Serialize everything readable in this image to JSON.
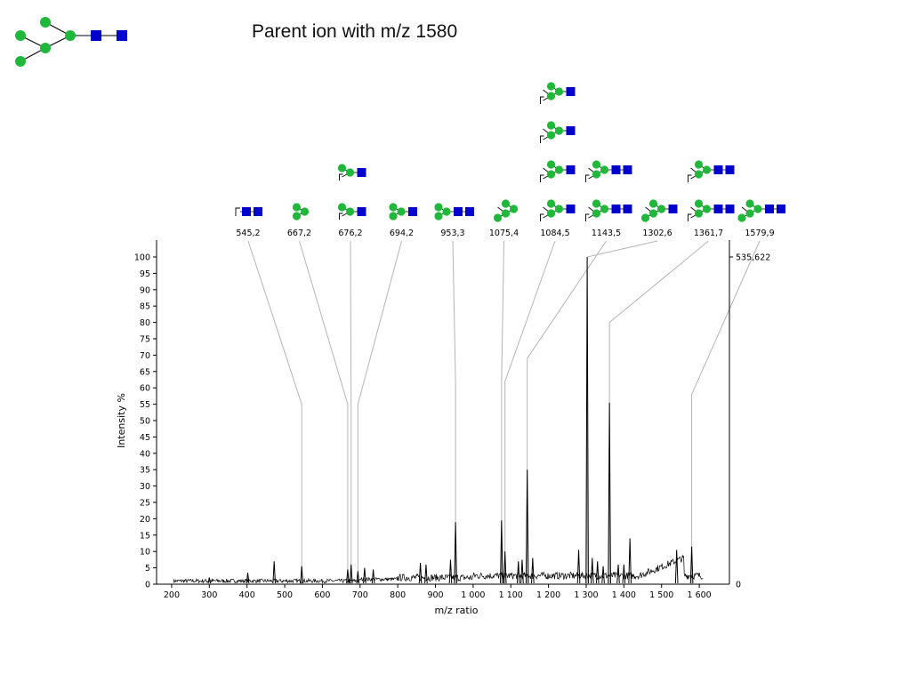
{
  "title": "Parent ion with m/z 1580",
  "colors": {
    "sugar": "#1fb83a",
    "core": "#0000cc",
    "peak": "#000000",
    "leader": "#b4b4b4"
  },
  "chart_data": {
    "type": "line",
    "title": "Parent ion with m/z 1580",
    "xlabel": "m/z ratio",
    "ylabel": "Intensity %",
    "xlim": [
      160,
      1680
    ],
    "ylim": [
      0,
      100
    ],
    "x_ticks": [
      200,
      300,
      400,
      500,
      600,
      700,
      800,
      900,
      1000,
      1100,
      1200,
      1300,
      1400,
      1500,
      1600
    ],
    "x_tick_labels": [
      "200",
      "300",
      "400",
      "500",
      "600",
      "700",
      "800",
      "900",
      "1 000",
      "1 100",
      "1 200",
      "1 300",
      "1 400",
      "1 500",
      "1 600"
    ],
    "y_ticks": [
      0,
      5,
      10,
      15,
      20,
      25,
      30,
      35,
      40,
      45,
      50,
      55,
      60,
      65,
      70,
      75,
      80,
      85,
      90,
      95,
      100
    ],
    "right_axis_labels": {
      "top": "535,622",
      "bottom": "0"
    },
    "grid": false,
    "peaks": [
      {
        "x": 300,
        "y": 2
      },
      {
        "x": 402,
        "y": 3.5
      },
      {
        "x": 472,
        "y": 7
      },
      {
        "x": 545.2,
        "y": 5.5
      },
      {
        "x": 667.2,
        "y": 4.5
      },
      {
        "x": 676.2,
        "y": 6
      },
      {
        "x": 694.2,
        "y": 4
      },
      {
        "x": 712,
        "y": 5
      },
      {
        "x": 735,
        "y": 4.5
      },
      {
        "x": 860,
        "y": 6.5
      },
      {
        "x": 875,
        "y": 6
      },
      {
        "x": 940,
        "y": 7.5
      },
      {
        "x": 953.3,
        "y": 19
      },
      {
        "x": 1075.4,
        "y": 19.5
      },
      {
        "x": 1084.5,
        "y": 10
      },
      {
        "x": 1120,
        "y": 7
      },
      {
        "x": 1130,
        "y": 7.5
      },
      {
        "x": 1143.5,
        "y": 35
      },
      {
        "x": 1158,
        "y": 8
      },
      {
        "x": 1280,
        "y": 10.5
      },
      {
        "x": 1302.6,
        "y": 100
      },
      {
        "x": 1316,
        "y": 8
      },
      {
        "x": 1330,
        "y": 7
      },
      {
        "x": 1345,
        "y": 5.5
      },
      {
        "x": 1361.7,
        "y": 55.5
      },
      {
        "x": 1385,
        "y": 6
      },
      {
        "x": 1400,
        "y": 6
      },
      {
        "x": 1416,
        "y": 14
      },
      {
        "x": 1540,
        "y": 10.5
      },
      {
        "x": 1579.9,
        "y": 11.5
      }
    ],
    "annotations": [
      {
        "label": "545,2",
        "x": 545.2,
        "y": 55,
        "structure": [
          [
            "f",
            "b",
            "b"
          ]
        ]
      },
      {
        "label": "667,2",
        "x": 667.2,
        "y": 55,
        "structure": [
          [
            "g2"
          ]
        ]
      },
      {
        "label": "676,2",
        "x": 676.2,
        "y": 55,
        "structure": [
          [
            "fg",
            "b"
          ],
          [
            "fg",
            "b"
          ]
        ]
      },
      {
        "label": "694,2",
        "x": 694.2,
        "y": 55,
        "structure": [
          [
            "g2",
            "b"
          ]
        ]
      },
      {
        "label": "953,3",
        "x": 953.3,
        "y": 62,
        "structure": [
          [
            "g2",
            "b",
            "b"
          ]
        ]
      },
      {
        "label": "1075,4",
        "x": 1075.4,
        "y": 62,
        "structure": [
          [
            "g4"
          ]
        ]
      },
      {
        "label": "1084,5",
        "x": 1084.5,
        "y": 62,
        "structure": [
          [
            "g4f",
            "b"
          ],
          [
            "g4f",
            "b"
          ],
          [
            "g4f",
            "b"
          ],
          [
            "g4f",
            "b"
          ]
        ]
      },
      {
        "label": "1143,5",
        "x": 1143.5,
        "y": 69,
        "structure": [
          [
            "g4f",
            "b",
            "b"
          ],
          [
            "g4f",
            "b",
            "b"
          ]
        ]
      },
      {
        "label": "1302,6",
        "x": 1302.6,
        "y": 100,
        "structure": [
          [
            "g4",
            "b"
          ]
        ]
      },
      {
        "label": "1361,7",
        "x": 1361.7,
        "y": 80,
        "structure": [
          [
            "g4f",
            "b",
            "b"
          ],
          [
            "g4f",
            "b",
            "b"
          ]
        ]
      },
      {
        "label": "1579,9",
        "x": 1579.9,
        "y": 58,
        "structure": [
          [
            "g4",
            "b",
            "b"
          ]
        ]
      }
    ]
  }
}
